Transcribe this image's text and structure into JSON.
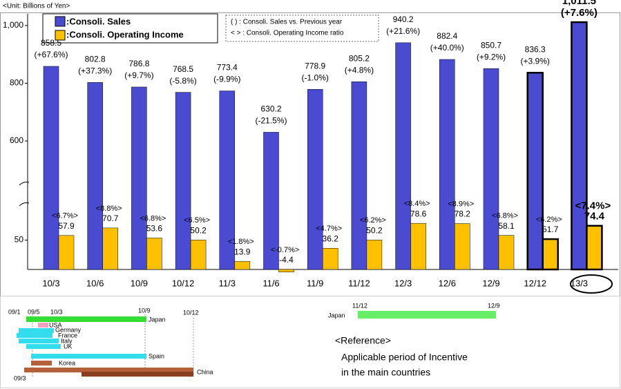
{
  "unit_label": "<Unit: Billions of Yen>",
  "notes": [
    "( ) : Consoli. Sales vs. Previous year",
    "< > : Consoli. Operating Income ratio"
  ],
  "chart_data": {
    "type": "bar",
    "categories": [
      "10/3",
      "10/6",
      "10/9",
      "10/12",
      "11/3",
      "11/6",
      "11/9",
      "11/12",
      "12/3",
      "12/6",
      "12/9",
      "12/12",
      "13/3"
    ],
    "series": [
      {
        "name": ":Consoli. Sales",
        "color": "#4b4bd2",
        "values": [
          858.5,
          802.8,
          786.8,
          768.5,
          773.4,
          630.2,
          778.9,
          805.2,
          940.2,
          882.4,
          850.7,
          836.3,
          1011.5
        ],
        "value_labels": [
          "858.5",
          "802.8",
          "786.8",
          "768.5",
          "773.4",
          "630.2",
          "778.9",
          "805.2",
          "940.2",
          "882.4",
          "850.7",
          "836.3",
          "1,011.5"
        ],
        "change_labels": [
          "(+67.6%)",
          "(+37.3%)",
          "(+9.7%)",
          "(-5.8%)",
          "(-9.9%)",
          "(-21.5%)",
          "(-1.0%)",
          "(+4.8%)",
          "(+21.6%)",
          "(+40.0%)",
          "(+9.2%)",
          "(+3.9%)",
          "(+7.6%)"
        ]
      },
      {
        "name": ":Consoli. Operating Income",
        "color": "#ffc000",
        "axis": "y2",
        "values": [
          57.9,
          70.7,
          53.6,
          50.2,
          13.9,
          -4.4,
          36.2,
          50.2,
          78.6,
          78.2,
          58.1,
          51.7,
          74.4
        ],
        "ratio_labels": [
          "<6.7%>",
          "<8.8%>",
          "<6.8%>",
          "<6.5%>",
          "<1.8%>",
          "<-0.7%>",
          "<4.7%>",
          "<6.2%>",
          "<8.4%>",
          "<8.9%>",
          "<6.8%>",
          "<6.2%>",
          "<7.4%>"
        ]
      }
    ],
    "ylim": [
      150,
      1050
    ],
    "yticks": [
      600,
      800,
      {
        "value": 1000,
        "label": "1,000"
      }
    ],
    "y2lim": [
      0,
      100
    ],
    "y2ticks": [
      50
    ]
  },
  "incentive": {
    "dates": [
      "09/1",
      "09/5",
      "10/3",
      "10/9",
      "10/12",
      "09/3"
    ],
    "countries": [
      "Japan",
      "USA",
      "Germany",
      "France",
      "Italy",
      "UK",
      "Spain",
      "Korea",
      "China"
    ],
    "japan_dates": [
      "11/12",
      "12/9"
    ],
    "japan_label": "Japan",
    "reference": [
      "<Reference>",
      "Applicable period of Incentive",
      "in the main countries"
    ]
  }
}
